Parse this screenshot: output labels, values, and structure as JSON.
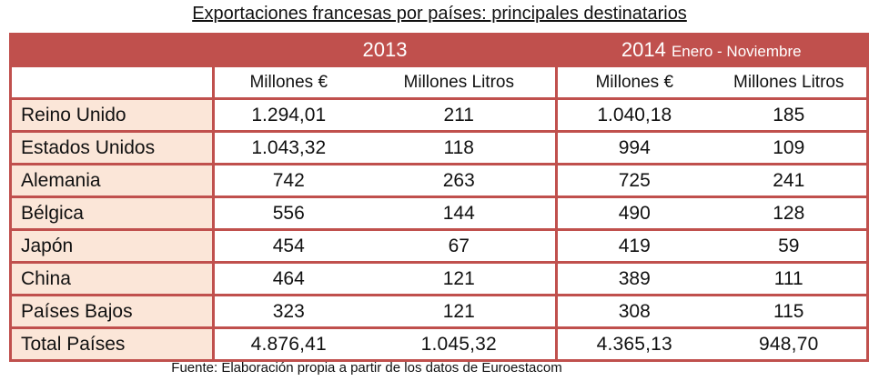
{
  "title": "Exportaciones francesas por países: principales destinatarios",
  "years": [
    {
      "year": "2013",
      "sub": ""
    },
    {
      "year": "2014",
      "sub": "Enero - Noviembre"
    }
  ],
  "units": [
    "Millones €",
    "Millones Litros",
    "Millones €",
    "Millones Litros"
  ],
  "rows": [
    {
      "country": "Reino Unido",
      "v": [
        "1.294,01",
        "211",
        "1.040,18",
        "185"
      ]
    },
    {
      "country": "Estados Unidos",
      "v": [
        "1.043,32",
        "118",
        "994",
        "109"
      ]
    },
    {
      "country": "Alemania",
      "v": [
        "742",
        "263",
        "725",
        "241"
      ]
    },
    {
      "country": "Bélgica",
      "v": [
        "556",
        "144",
        "490",
        "128"
      ]
    },
    {
      "country": "Japón",
      "v": [
        "454",
        "67",
        "419",
        "59"
      ]
    },
    {
      "country": "China",
      "v": [
        "464",
        "121",
        "389",
        "111"
      ]
    },
    {
      "country": "Países Bajos",
      "v": [
        "323",
        "121",
        "308",
        "115"
      ]
    }
  ],
  "total": {
    "country": "Total Países",
    "v": [
      "4.876,41",
      "1.045,32",
      "4.365,13",
      "948,70"
    ]
  },
  "footer": "Fuente: Elaboración propia a partir de los datos de Euroestacom",
  "colors": {
    "header": "#c0504d",
    "label_bg": "#fbe6d8"
  }
}
